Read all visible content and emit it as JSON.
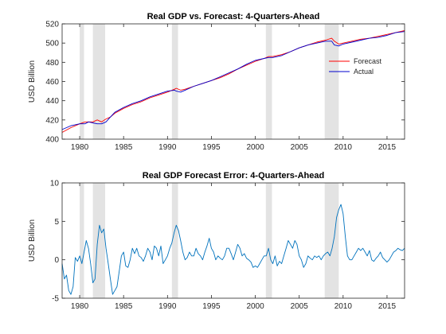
{
  "chart_data": [
    {
      "type": "line",
      "title": "Real GDP vs. Forecast: 4-Quarters-Ahead",
      "ylabel": "USD Billion",
      "xlim": [
        1978,
        2017
      ],
      "ylim": [
        400,
        520
      ],
      "xticks": [
        1980,
        1985,
        1990,
        1995,
        2000,
        2005,
        2010,
        2015
      ],
      "yticks": [
        400,
        420,
        440,
        460,
        480,
        500,
        520
      ],
      "recessions": [
        [
          1980.0,
          1980.5
        ],
        [
          1981.5,
          1982.9
        ],
        [
          1990.5,
          1991.2
        ],
        [
          2001.2,
          2001.9
        ],
        [
          2007.9,
          2009.5
        ]
      ],
      "legend_position": "right",
      "series": [
        {
          "name": "Forecast",
          "color": "#ff0000",
          "x": [
            1978,
            1979,
            1980,
            1980.6,
            1981,
            1981.5,
            1982,
            1982.5,
            1983,
            1983.5,
            1984,
            1985,
            1986,
            1987,
            1988,
            1989,
            1990,
            1990.8,
            1991,
            1991.5,
            1992,
            1993,
            1994,
            1995,
            1996,
            1997,
            1998,
            1999,
            2000,
            2001,
            2001.5,
            2002,
            2003,
            2004,
            2005,
            2006,
            2007,
            2008,
            2008.7,
            2009,
            2009.5,
            2010,
            2011,
            2012,
            2013,
            2014,
            2015,
            2016,
            2017
          ],
          "values": [
            407,
            412,
            416,
            418,
            418,
            418,
            420,
            418,
            421,
            423,
            427,
            432,
            436,
            439,
            443,
            446,
            449,
            452,
            453,
            451,
            452,
            455,
            458,
            461,
            464,
            468,
            473,
            477,
            481,
            484,
            486,
            486,
            488,
            491,
            495,
            498,
            501,
            503,
            505,
            502,
            499,
            500,
            502,
            504,
            505,
            507,
            509,
            511,
            513
          ]
        },
        {
          "name": "Actual",
          "color": "#0000cc",
          "x": [
            1978,
            1979,
            1980,
            1980.6,
            1981,
            1981.5,
            1982,
            1982.5,
            1983,
            1983.5,
            1984,
            1985,
            1986,
            1987,
            1988,
            1989,
            1990,
            1990.8,
            1991,
            1991.5,
            1992,
            1993,
            1994,
            1995,
            1996,
            1997,
            1998,
            1999,
            2000,
            2001,
            2001.5,
            2002,
            2003,
            2004,
            2005,
            2006,
            2007,
            2008,
            2008.7,
            2009,
            2009.5,
            2010,
            2011,
            2012,
            2013,
            2014,
            2015,
            2016,
            2017
          ],
          "values": [
            410,
            414,
            416,
            416,
            418,
            417,
            416,
            416,
            418,
            423,
            428,
            433,
            437,
            440,
            444,
            447,
            450,
            451,
            450,
            449,
            451,
            455,
            458,
            461,
            465,
            469,
            473,
            478,
            482,
            484,
            485,
            485,
            487,
            491,
            495,
            498,
            500,
            502,
            502,
            498,
            497,
            499,
            501,
            503,
            505,
            506,
            508,
            511,
            512
          ]
        }
      ]
    },
    {
      "type": "line",
      "title": "Real GDP Forecast Error: 4-Quarters-Ahead",
      "ylabel": "USD Billion",
      "xlim": [
        1978,
        2017
      ],
      "ylim": [
        -5,
        10
      ],
      "xticks": [
        1980,
        1985,
        1990,
        1995,
        2000,
        2005,
        2010,
        2015
      ],
      "yticks": [
        -5,
        0,
        5,
        10
      ],
      "recessions": [
        [
          1980.0,
          1980.5
        ],
        [
          1981.5,
          1982.9
        ],
        [
          1990.5,
          1991.2
        ],
        [
          2001.2,
          2001.9
        ],
        [
          2007.9,
          2009.5
        ]
      ],
      "series": [
        {
          "name": "",
          "color": "#0072bd",
          "x": [
            1978,
            1978.25,
            1978.5,
            1978.75,
            1979,
            1979.25,
            1979.5,
            1979.75,
            1980,
            1980.25,
            1980.5,
            1980.75,
            1981,
            1981.25,
            1981.5,
            1981.75,
            1982,
            1982.25,
            1982.5,
            1982.75,
            1983,
            1983.25,
            1983.5,
            1983.75,
            1984,
            1984.25,
            1984.5,
            1984.75,
            1985,
            1985.25,
            1985.5,
            1985.75,
            1986,
            1986.25,
            1986.5,
            1986.75,
            1987,
            1987.25,
            1987.5,
            1987.75,
            1988,
            1988.25,
            1988.5,
            1988.75,
            1989,
            1989.25,
            1989.5,
            1989.75,
            1990,
            1990.25,
            1990.5,
            1990.75,
            1991,
            1991.25,
            1991.5,
            1991.75,
            1992,
            1992.25,
            1992.5,
            1992.75,
            1993,
            1993.25,
            1993.5,
            1993.75,
            1994,
            1994.25,
            1994.5,
            1994.75,
            1995,
            1995.25,
            1995.5,
            1995.75,
            1996,
            1996.25,
            1996.5,
            1996.75,
            1997,
            1997.25,
            1997.5,
            1997.75,
            1998,
            1998.25,
            1998.5,
            1998.75,
            1999,
            1999.25,
            1999.5,
            1999.75,
            2000,
            2000.25,
            2000.5,
            2000.75,
            2001,
            2001.25,
            2001.5,
            2001.75,
            2002,
            2002.25,
            2002.5,
            2002.75,
            2003,
            2003.25,
            2003.5,
            2003.75,
            2004,
            2004.25,
            2004.5,
            2004.75,
            2005,
            2005.25,
            2005.5,
            2005.75,
            2006,
            2006.25,
            2006.5,
            2006.75,
            2007,
            2007.25,
            2007.5,
            2007.75,
            2008,
            2008.25,
            2008.5,
            2008.75,
            2009,
            2009.25,
            2009.5,
            2009.75,
            2010,
            2010.25,
            2010.5,
            2010.75,
            2011,
            2011.25,
            2011.5,
            2011.75,
            2012,
            2012.25,
            2012.5,
            2012.75,
            2013,
            2013.25,
            2013.5,
            2013.75,
            2014,
            2014.25,
            2014.5,
            2014.75,
            2015,
            2015.25,
            2015.5,
            2015.75,
            2016,
            2016.25,
            2016.5,
            2016.75,
            2017
          ],
          "values": [
            -0.5,
            -2.5,
            -2.0,
            -4.0,
            -4.5,
            -3.5,
            0.3,
            -0.2,
            0.5,
            -0.5,
            1.0,
            2.5,
            1.5,
            -0.5,
            -3.0,
            -2.5,
            2.0,
            4.5,
            3.5,
            4.0,
            1.5,
            -0.5,
            -2.5,
            -4.5,
            -4.0,
            -3.5,
            -1.5,
            0.5,
            1.0,
            -0.8,
            -1.0,
            0.0,
            1.5,
            0.8,
            1.5,
            0.5,
            0.3,
            -0.2,
            0.5,
            1.5,
            1.0,
            0.0,
            1.8,
            1.5,
            0.5,
            1.8,
            -0.5,
            0.0,
            0.5,
            1.5,
            2.2,
            3.5,
            4.5,
            3.8,
            2.5,
            1.0,
            0.0,
            0.3,
            1.0,
            0.5,
            0.5,
            1.5,
            0.8,
            0.5,
            0.0,
            1.0,
            1.8,
            2.8,
            1.5,
            1.0,
            0.0,
            0.5,
            0.2,
            0.0,
            0.5,
            1.5,
            1.5,
            0.8,
            0.0,
            1.0,
            2.0,
            1.5,
            0.5,
            0.8,
            0.2,
            0.0,
            -0.3,
            -1.0,
            -0.8,
            -1.0,
            -0.5,
            0.0,
            0.5,
            0.5,
            1.5,
            0.0,
            -0.5,
            0.5,
            -0.8,
            -0.2,
            -0.5,
            0.5,
            1.5,
            2.5,
            2.0,
            1.5,
            2.5,
            2.0,
            0.5,
            0.0,
            -1.0,
            -0.5,
            0.5,
            0.2,
            0.0,
            0.5,
            0.3,
            0.5,
            0.0,
            0.5,
            0.8,
            1.0,
            0.5,
            1.5,
            3.0,
            5.5,
            6.5,
            7.2,
            6.0,
            3.0,
            0.5,
            0.0,
            0.0,
            0.5,
            1.0,
            1.5,
            1.2,
            1.5,
            1.0,
            0.5,
            1.2,
            0.0,
            -0.2,
            0.2,
            0.5,
            1.0,
            0.3,
            0.0,
            -0.3,
            0.0,
            0.5,
            1.0,
            1.2,
            1.5,
            1.3,
            1.2,
            1.5
          ]
        }
      ]
    }
  ]
}
